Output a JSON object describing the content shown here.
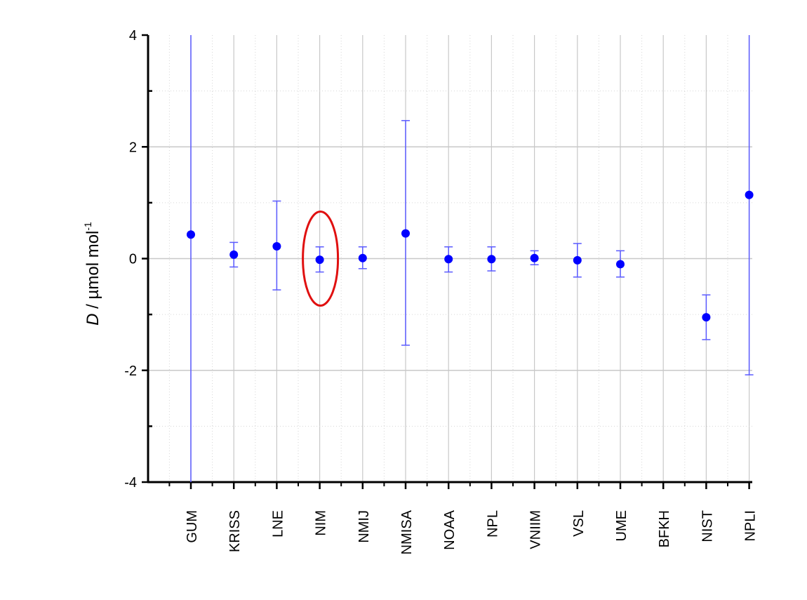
{
  "chart_data": {
    "type": "scatter",
    "title": "",
    "xlabel": "",
    "ylabel": {
      "symbol": "D",
      "separator": " / ",
      "unit_prefix": "µmol mol",
      "unit_exponent": "-1"
    },
    "ylim": [
      -4,
      4
    ],
    "yticks": [
      "-4",
      "-2",
      "0",
      "2",
      "4"
    ],
    "grid": true,
    "legend": "none",
    "colors": {
      "points": "#0000ff",
      "errorbars": "#5a5aff",
      "highlight": "#e01010",
      "grid": "#c8c8c8"
    },
    "categories": [
      "GUM",
      "KRISS",
      "LNE",
      "NIM",
      "NMIJ",
      "NMISA",
      "NOAA",
      "NPL",
      "VNIIM",
      "VSL",
      "UME",
      "BFKH",
      "NIST",
      "NPLI"
    ],
    "series": [
      {
        "values": [
          0.43,
          0.07,
          0.22,
          -0.02,
          0.01,
          0.45,
          -0.01,
          -0.01,
          0.01,
          -0.03,
          -0.1,
          null,
          -1.05,
          1.14
        ],
        "err_high": [
          4.0,
          0.29,
          1.03,
          0.21,
          0.21,
          2.47,
          0.21,
          0.21,
          0.14,
          0.27,
          0.14,
          null,
          -0.65,
          4.0
        ],
        "err_low": [
          -4.0,
          -0.15,
          -0.56,
          -0.24,
          -0.18,
          -1.55,
          -0.24,
          -0.22,
          -0.11,
          -0.33,
          -0.33,
          null,
          -1.45,
          -2.08
        ]
      }
    ],
    "highlighted_category": "NIM",
    "highlight_shape": "ellipse"
  }
}
